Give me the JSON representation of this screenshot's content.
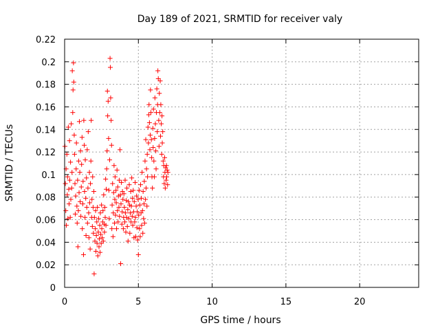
{
  "chart_data": {
    "type": "scatter",
    "title": "Day 189 of 2021, SRMTID for receiver valy",
    "xlabel": "GPS time / hours",
    "ylabel": "SRMTID / TECUs",
    "xlim": [
      0,
      24
    ],
    "ylim": [
      0,
      0.22
    ],
    "x_ticks": [
      "0",
      "5",
      "10",
      "15",
      "20"
    ],
    "y_ticks": [
      "0",
      "0.02",
      "0.04",
      "0.06",
      "0.08",
      "0.1",
      "0.12",
      "0.14",
      "0.16",
      "0.18",
      "0.2",
      "0.22"
    ],
    "grid": true,
    "marker": "+",
    "series": [
      {
        "color": "#ff0000",
        "points": [
          [
            0.02,
            0.125
          ],
          [
            0.05,
            0.092
          ],
          [
            0.08,
            0.068
          ],
          [
            0.1,
            0.105
          ],
          [
            0.12,
            0.055
          ],
          [
            0.15,
            0.118
          ],
          [
            0.18,
            0.082
          ],
          [
            0.2,
            0.098
          ],
          [
            0.22,
            0.061
          ],
          [
            0.25,
            0.142
          ],
          [
            0.28,
            0.087
          ],
          [
            0.3,
            0.074
          ],
          [
            0.33,
            0.13
          ],
          [
            0.35,
            0.095
          ],
          [
            0.38,
            0.062
          ],
          [
            0.4,
            0.111
          ],
          [
            0.42,
            0.078
          ],
          [
            0.45,
            0.145
          ],
          [
            0.48,
            0.088
          ],
          [
            0.5,
            0.102
          ],
          [
            0.52,
            0.192
          ],
          [
            0.55,
            0.155
          ],
          [
            0.57,
            0.175
          ],
          [
            0.6,
            0.199
          ],
          [
            0.62,
            0.182
          ],
          [
            0.65,
            0.135
          ],
          [
            0.67,
            0.118
          ],
          [
            0.7,
            0.092
          ],
          [
            0.72,
            0.065
          ],
          [
            0.75,
            0.081
          ],
          [
            0.78,
            0.105
          ],
          [
            0.8,
            0.128
          ],
          [
            0.83,
            0.072
          ],
          [
            0.85,
            0.057
          ],
          [
            0.88,
            0.095
          ],
          [
            0.9,
            0.036
          ],
          [
            0.93,
            0.068
          ],
          [
            0.95,
            0.112
          ],
          [
            0.98,
            0.084
          ],
          [
            1.0,
            0.147
          ],
          [
            1.03,
            0.102
          ],
          [
            1.05,
            0.076
          ],
          [
            1.08,
            0.121
          ],
          [
            1.1,
            0.063
          ],
          [
            1.13,
            0.089
          ],
          [
            1.15,
            0.109
          ],
          [
            1.18,
            0.133
          ],
          [
            1.2,
            0.052
          ],
          [
            1.23,
            0.074
          ],
          [
            1.25,
            0.094
          ],
          [
            1.28,
            0.029
          ],
          [
            1.3,
            0.148
          ],
          [
            1.33,
            0.126
          ],
          [
            1.35,
            0.085
          ],
          [
            1.38,
            0.062
          ],
          [
            1.4,
            0.113
          ],
          [
            1.43,
            0.079
          ],
          [
            1.45,
            0.046
          ],
          [
            1.48,
            0.097
          ],
          [
            1.5,
            0.071
          ],
          [
            1.53,
            0.122
          ],
          [
            1.55,
            0.057
          ],
          [
            1.58,
            0.088
          ],
          [
            1.6,
            0.138
          ],
          [
            1.63,
            0.066
          ],
          [
            1.65,
            0.044
          ],
          [
            1.68,
            0.102
          ],
          [
            1.7,
            0.075
          ],
          [
            1.73,
            0.034
          ],
          [
            1.75,
            0.092
          ],
          [
            1.78,
            0.112
          ],
          [
            1.8,
            0.148
          ],
          [
            1.83,
            0.062
          ],
          [
            1.85,
            0.078
          ],
          [
            1.88,
            0.054
          ],
          [
            1.9,
            0.098
          ],
          [
            1.93,
            0.071
          ],
          [
            1.95,
            0.048
          ],
          [
            1.98,
            0.085
          ],
          [
            2.0,
            0.012
          ],
          [
            2.02,
            0.062
          ],
          [
            2.05,
            0.041
          ],
          [
            2.08,
            0.052
          ],
          [
            2.1,
            0.068
          ],
          [
            2.12,
            0.032
          ],
          [
            2.15,
            0.046
          ],
          [
            2.18,
            0.058
          ],
          [
            2.2,
            0.039
          ],
          [
            2.22,
            0.071
          ],
          [
            2.25,
            0.028
          ],
          [
            2.28,
            0.049
          ],
          [
            2.3,
            0.061
          ],
          [
            2.33,
            0.036
          ],
          [
            2.35,
            0.043
          ],
          [
            2.38,
            0.055
          ],
          [
            2.4,
            0.031
          ],
          [
            2.42,
            0.066
          ],
          [
            2.45,
            0.047
          ],
          [
            2.48,
            0.039
          ],
          [
            2.5,
            0.073
          ],
          [
            2.52,
            0.052
          ],
          [
            2.55,
            0.044
          ],
          [
            2.58,
            0.058
          ],
          [
            2.6,
            0.068
          ],
          [
            2.62,
            0.041
          ],
          [
            2.65,
            0.082
          ],
          [
            2.68,
            0.056
          ],
          [
            2.7,
            0.049
          ],
          [
            2.72,
            0.071
          ],
          [
            2.75,
            0.062
          ],
          [
            2.78,
            0.096
          ],
          [
            2.8,
            0.055
          ],
          [
            2.82,
            0.087
          ],
          [
            2.85,
            0.105
          ],
          [
            2.88,
            0.121
          ],
          [
            2.9,
            0.174
          ],
          [
            2.92,
            0.152
          ],
          [
            2.95,
            0.165
          ],
          [
            2.98,
            0.132
          ],
          [
            3.0,
            0.086
          ],
          [
            3.02,
            0.061
          ],
          [
            3.05,
            0.113
          ],
          [
            3.08,
            0.203
          ],
          [
            3.1,
            0.195
          ],
          [
            3.12,
            0.168
          ],
          [
            3.15,
            0.148
          ],
          [
            3.18,
            0.126
          ],
          [
            3.2,
            0.052
          ],
          [
            3.22,
            0.073
          ],
          [
            3.25,
            0.092
          ],
          [
            3.28,
            0.045
          ],
          [
            3.3,
            0.066
          ],
          [
            3.32,
            0.084
          ],
          [
            3.35,
            0.108
          ],
          [
            3.38,
            0.057
          ],
          [
            3.4,
            0.078
          ],
          [
            3.42,
            0.098
          ],
          [
            3.45,
            0.064
          ],
          [
            3.48,
            0.086
          ],
          [
            3.5,
            0.075
          ],
          [
            3.52,
            0.052
          ],
          [
            3.55,
            0.104
          ],
          [
            3.58,
            0.068
          ],
          [
            3.6,
            0.089
          ],
          [
            3.62,
            0.058
          ],
          [
            3.65,
            0.081
          ],
          [
            3.68,
            0.071
          ],
          [
            3.7,
            0.095
          ],
          [
            3.72,
            0.063
          ],
          [
            3.75,
            0.122
          ],
          [
            3.78,
            0.082
          ],
          [
            3.8,
            0.021
          ],
          [
            3.82,
            0.074
          ],
          [
            3.85,
            0.093
          ],
          [
            3.88,
            0.056
          ],
          [
            3.9,
            0.067
          ],
          [
            3.92,
            0.085
          ],
          [
            3.95,
            0.078
          ],
          [
            3.98,
            0.052
          ],
          [
            4.0,
            0.062
          ],
          [
            4.02,
            0.083
          ],
          [
            4.05,
            0.071
          ],
          [
            4.08,
            0.058
          ],
          [
            4.1,
            0.095
          ],
          [
            4.12,
            0.066
          ],
          [
            4.15,
            0.049
          ],
          [
            4.18,
            0.077
          ],
          [
            4.2,
            0.062
          ],
          [
            4.22,
            0.088
          ],
          [
            4.25,
            0.054
          ],
          [
            4.28,
            0.069
          ],
          [
            4.3,
            0.041
          ],
          [
            4.32,
            0.076
          ],
          [
            4.35,
            0.061
          ],
          [
            4.38,
            0.091
          ],
          [
            4.4,
            0.073
          ],
          [
            4.42,
            0.048
          ],
          [
            4.45,
            0.066
          ],
          [
            4.48,
            0.085
          ],
          [
            4.5,
            0.058
          ],
          [
            4.52,
            0.072
          ],
          [
            4.55,
            0.097
          ],
          [
            4.58,
            0.063
          ],
          [
            4.6,
            0.079
          ],
          [
            4.62,
            0.055
          ],
          [
            4.65,
            0.086
          ],
          [
            4.68,
            0.067
          ],
          [
            4.7,
            0.044
          ],
          [
            4.72,
            0.076
          ],
          [
            4.75,
            0.058
          ],
          [
            4.78,
            0.093
          ],
          [
            4.8,
            0.062
          ],
          [
            4.82,
            0.045
          ],
          [
            4.85,
            0.072
          ],
          [
            4.88,
            0.081
          ],
          [
            4.9,
            0.053
          ],
          [
            4.92,
            0.067
          ],
          [
            4.95,
            0.042
          ],
          [
            4.98,
            0.078
          ],
          [
            5.0,
            0.029
          ],
          [
            5.02,
            0.064
          ],
          [
            5.05,
            0.086
          ],
          [
            5.08,
            0.052
          ],
          [
            5.1,
            0.073
          ],
          [
            5.12,
            0.045
          ],
          [
            5.15,
            0.091
          ],
          [
            5.18,
            0.066
          ],
          [
            5.2,
            0.079
          ],
          [
            5.22,
            0.055
          ],
          [
            5.25,
            0.102
          ],
          [
            5.28,
            0.068
          ],
          [
            5.3,
            0.048
          ],
          [
            5.32,
            0.085
          ],
          [
            5.35,
            0.061
          ],
          [
            5.38,
            0.074
          ],
          [
            5.4,
            0.094
          ],
          [
            5.42,
            0.057
          ],
          [
            5.45,
            0.112
          ],
          [
            5.48,
            0.078
          ],
          [
            5.5,
            0.131
          ],
          [
            5.52,
            0.088
          ],
          [
            5.55,
            0.105
          ],
          [
            5.58,
            0.072
          ],
          [
            5.6,
            0.118
          ],
          [
            5.62,
            0.098
          ],
          [
            5.65,
            0.142
          ],
          [
            5.68,
            0.128
          ],
          [
            5.7,
            0.153
          ],
          [
            5.72,
            0.162
          ],
          [
            5.75,
            0.146
          ],
          [
            5.78,
            0.122
          ],
          [
            5.8,
            0.135
          ],
          [
            5.82,
            0.175
          ],
          [
            5.85,
            0.155
          ],
          [
            5.88,
            0.131
          ],
          [
            5.9,
            0.115
          ],
          [
            5.92,
            0.098
          ],
          [
            5.95,
            0.088
          ],
          [
            5.98,
            0.141
          ],
          [
            6.0,
            0.124
          ],
          [
            6.02,
            0.158
          ],
          [
            6.05,
            0.112
          ],
          [
            6.08,
            0.098
          ],
          [
            6.1,
            0.132
          ],
          [
            6.12,
            0.168
          ],
          [
            6.15,
            0.145
          ],
          [
            6.18,
            0.121
          ],
          [
            6.2,
            0.105
          ],
          [
            6.22,
            0.155
          ],
          [
            6.25,
            0.176
          ],
          [
            6.28,
            0.138
          ],
          [
            6.3,
            0.162
          ],
          [
            6.32,
            0.192
          ],
          [
            6.35,
            0.185
          ],
          [
            6.38,
            0.148
          ],
          [
            6.4,
            0.125
          ],
          [
            6.42,
            0.172
          ],
          [
            6.45,
            0.155
          ],
          [
            6.48,
            0.183
          ],
          [
            6.5,
            0.134
          ],
          [
            6.52,
            0.162
          ],
          [
            6.55,
            0.145
          ],
          [
            6.58,
            0.118
          ],
          [
            6.6,
            0.152
          ],
          [
            6.62,
            0.128
          ],
          [
            6.65,
            0.138
          ],
          [
            6.68,
            0.112
          ],
          [
            6.7,
            0.098
          ],
          [
            6.72,
            0.108
          ],
          [
            6.75,
            0.092
          ],
          [
            6.78,
            0.115
          ],
          [
            6.8,
            0.102
          ],
          [
            6.82,
            0.088
          ],
          [
            6.85,
            0.106
          ],
          [
            6.88,
            0.095
          ],
          [
            6.9,
            0.108
          ],
          [
            6.92,
            0.098
          ],
          [
            6.95,
            0.104
          ],
          [
            6.98,
            0.091
          ],
          [
            7.0,
            0.102
          ]
        ]
      }
    ]
  }
}
